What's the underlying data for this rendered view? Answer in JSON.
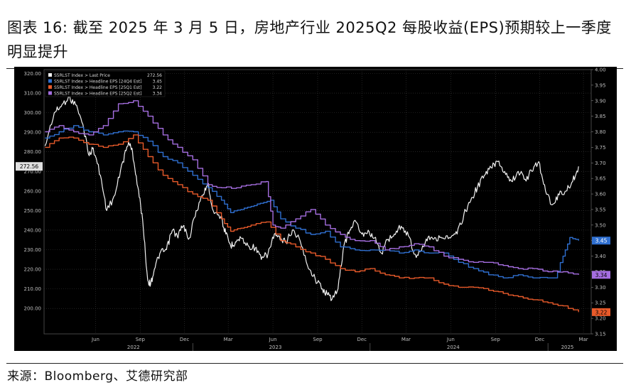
{
  "title": "图表 16: 截至 2025 年 3 月 5 日，房地产行业 2025Q2 每股收益(EPS)预期较上一季度明显提升",
  "source": "来源：Bloomberg、艾德研究部",
  "chart_data": {
    "type": "line",
    "legend_position": "top-left",
    "grid": true,
    "x_ticks": [
      {
        "label": "Jun",
        "date": "2022-06-15"
      },
      {
        "label": "Sep",
        "date": "2022-09-15"
      },
      {
        "label": "Dec",
        "date": "2022-12-15"
      },
      {
        "label": "Mar",
        "date": "2023-03-15"
      },
      {
        "label": "Jun",
        "date": "2023-06-15"
      },
      {
        "label": "Sep",
        "date": "2023-09-15"
      },
      {
        "label": "Dec",
        "date": "2023-12-15"
      },
      {
        "label": "Mar",
        "date": "2024-03-15"
      },
      {
        "label": "Jun",
        "date": "2024-06-15"
      },
      {
        "label": "Sep",
        "date": "2024-09-15"
      },
      {
        "label": "Dec",
        "date": "2024-12-15"
      },
      {
        "label": "Mar",
        "date": "2025-03-15"
      }
    ],
    "year_labels": [
      {
        "label": "2022",
        "date": "2022-09-01"
      },
      {
        "label": "2023",
        "date": "2023-06-20"
      },
      {
        "label": "2024",
        "date": "2024-06-20"
      },
      {
        "label": "2025",
        "date": "2025-02-10"
      }
    ],
    "xlim": [
      "2022-03-01",
      "2025-03-31"
    ],
    "y_left": {
      "ylim": [
        187,
        322
      ],
      "ticks": [
        "200.00",
        "210.00",
        "220.00",
        "230.00",
        "240.00",
        "250.00",
        "260.00",
        "270.00",
        "280.00",
        "290.00",
        "300.00",
        "310.00",
        "320.00"
      ]
    },
    "y_right": {
      "ylim": [
        3.15,
        4.0
      ],
      "ticks": [
        "3.15",
        "3.20",
        "3.25",
        "3.30",
        "3.35",
        "3.40",
        "3.45",
        "3.50",
        "3.55",
        "3.60",
        "3.65",
        "3.70",
        "3.75",
        "3.80",
        "3.85",
        "3.90",
        "3.95",
        "4.00"
      ]
    },
    "last_labels": {
      "price": "272.56",
      "q4": "3.45",
      "q1": "3.22",
      "q2": "3.34"
    },
    "series": [
      {
        "name": "S5RLST Index > Last Price",
        "legend_value": "272.56",
        "color": "#f2f2f2",
        "axis": "left",
        "points": [
          [
            "2022-03-03",
            283
          ],
          [
            "2022-03-22",
            300
          ],
          [
            "2022-04-05",
            303
          ],
          [
            "2022-04-20",
            308
          ],
          [
            "2022-05-05",
            304
          ],
          [
            "2022-05-20",
            294
          ],
          [
            "2022-06-02",
            278
          ],
          [
            "2022-06-10",
            282
          ],
          [
            "2022-06-25",
            268
          ],
          [
            "2022-07-08",
            250
          ],
          [
            "2022-07-25",
            258
          ],
          [
            "2022-08-10",
            275
          ],
          [
            "2022-08-22",
            285
          ],
          [
            "2022-08-30",
            280
          ],
          [
            "2022-09-10",
            262
          ],
          [
            "2022-09-20",
            245
          ],
          [
            "2022-09-30",
            215
          ],
          [
            "2022-10-06",
            212
          ],
          [
            "2022-10-14",
            220
          ],
          [
            "2022-10-25",
            228
          ],
          [
            "2022-11-08",
            230
          ],
          [
            "2022-11-20",
            240
          ],
          [
            "2022-11-30",
            237
          ],
          [
            "2022-12-12",
            242
          ],
          [
            "2022-12-25",
            236
          ],
          [
            "2023-01-08",
            250
          ],
          [
            "2023-01-22",
            258
          ],
          [
            "2023-02-01",
            264
          ],
          [
            "2023-02-12",
            250
          ],
          [
            "2023-02-28",
            247
          ],
          [
            "2023-03-10",
            238
          ],
          [
            "2023-03-20",
            232
          ],
          [
            "2023-03-30",
            234
          ],
          [
            "2023-04-10",
            236
          ],
          [
            "2023-04-25",
            232
          ],
          [
            "2023-05-10",
            231
          ],
          [
            "2023-05-22",
            225
          ],
          [
            "2023-06-05",
            228
          ],
          [
            "2023-06-18",
            238
          ],
          [
            "2023-06-30",
            235
          ],
          [
            "2023-07-12",
            234
          ],
          [
            "2023-07-25",
            240
          ],
          [
            "2023-08-08",
            236
          ],
          [
            "2023-08-25",
            222
          ],
          [
            "2023-09-10",
            215
          ],
          [
            "2023-09-25",
            210
          ],
          [
            "2023-10-06",
            207
          ],
          [
            "2023-10-15",
            205
          ],
          [
            "2023-10-27",
            210
          ],
          [
            "2023-11-08",
            232
          ],
          [
            "2023-11-20",
            240
          ],
          [
            "2023-12-01",
            245
          ],
          [
            "2023-12-15",
            238
          ],
          [
            "2023-12-28",
            240
          ],
          [
            "2024-01-10",
            236
          ],
          [
            "2024-01-25",
            228
          ],
          [
            "2024-02-05",
            235
          ],
          [
            "2024-02-20",
            238
          ],
          [
            "2024-03-05",
            242
          ],
          [
            "2024-03-20",
            237
          ],
          [
            "2024-04-05",
            226
          ],
          [
            "2024-04-18",
            232
          ],
          [
            "2024-05-01",
            237
          ],
          [
            "2024-05-15",
            236
          ],
          [
            "2024-05-30",
            236
          ],
          [
            "2024-06-14",
            236
          ],
          [
            "2024-06-28",
            238
          ],
          [
            "2024-07-12",
            248
          ],
          [
            "2024-07-26",
            255
          ],
          [
            "2024-08-09",
            262
          ],
          [
            "2024-08-23",
            268
          ],
          [
            "2024-09-06",
            272
          ],
          [
            "2024-09-20",
            275
          ],
          [
            "2024-10-04",
            270
          ],
          [
            "2024-10-18",
            265
          ],
          [
            "2024-11-01",
            270
          ],
          [
            "2024-11-15",
            266
          ],
          [
            "2024-11-29",
            270
          ],
          [
            "2024-12-13",
            275
          ],
          [
            "2024-12-27",
            260
          ],
          [
            "2025-01-10",
            253
          ],
          [
            "2025-01-24",
            258
          ],
          [
            "2025-02-07",
            260
          ],
          [
            "2025-02-21",
            265
          ],
          [
            "2025-03-05",
            272.56
          ]
        ]
      },
      {
        "name": "S5RLST Index > Headline EPS [24Q4 Est]",
        "legend_value": "3.45",
        "color": "#2f6fd0",
        "axis": "right",
        "points": [
          [
            "2022-03-03",
            3.78
          ],
          [
            "2022-04-01",
            3.8
          ],
          [
            "2022-05-01",
            3.82
          ],
          [
            "2022-06-01",
            3.8
          ],
          [
            "2022-07-01",
            3.79
          ],
          [
            "2022-08-01",
            3.8
          ],
          [
            "2022-09-01",
            3.8
          ],
          [
            "2022-10-01",
            3.77
          ],
          [
            "2022-11-01",
            3.72
          ],
          [
            "2022-12-01",
            3.7
          ],
          [
            "2023-01-01",
            3.66
          ],
          [
            "2023-02-01",
            3.62
          ],
          [
            "2023-03-01",
            3.58
          ],
          [
            "2023-03-20",
            3.54
          ],
          [
            "2023-04-10",
            3.55
          ],
          [
            "2023-05-01",
            3.56
          ],
          [
            "2023-05-20",
            3.57
          ],
          [
            "2023-06-10",
            3.58
          ],
          [
            "2023-07-01",
            3.52
          ],
          [
            "2023-08-01",
            3.49
          ],
          [
            "2023-09-01",
            3.47
          ],
          [
            "2023-10-01",
            3.48
          ],
          [
            "2023-11-01",
            3.43
          ],
          [
            "2023-12-01",
            3.42
          ],
          [
            "2024-01-01",
            3.42
          ],
          [
            "2024-02-01",
            3.42
          ],
          [
            "2024-03-01",
            3.41
          ],
          [
            "2024-04-01",
            3.42
          ],
          [
            "2024-05-01",
            3.41
          ],
          [
            "2024-06-01",
            3.41
          ],
          [
            "2024-07-01",
            3.38
          ],
          [
            "2024-08-01",
            3.36
          ],
          [
            "2024-09-01",
            3.34
          ],
          [
            "2024-10-01",
            3.33
          ],
          [
            "2024-11-01",
            3.34
          ],
          [
            "2024-12-01",
            3.33
          ],
          [
            "2025-01-15",
            3.33
          ],
          [
            "2025-02-01",
            3.4
          ],
          [
            "2025-02-15",
            3.46
          ],
          [
            "2025-03-05",
            3.45
          ]
        ]
      },
      {
        "name": "S5RLST Index > Headline EPS [25Q1 Est]",
        "legend_value": "3.22",
        "color": "#e85a2a",
        "axis": "right",
        "points": [
          [
            "2022-03-03",
            3.75
          ],
          [
            "2022-04-01",
            3.78
          ],
          [
            "2022-05-01",
            3.78
          ],
          [
            "2022-06-01",
            3.76
          ],
          [
            "2022-07-01",
            3.75
          ],
          [
            "2022-08-01",
            3.76
          ],
          [
            "2022-09-01",
            3.79
          ],
          [
            "2022-10-01",
            3.72
          ],
          [
            "2022-11-01",
            3.66
          ],
          [
            "2022-12-01",
            3.63
          ],
          [
            "2023-01-01",
            3.6
          ],
          [
            "2023-02-01",
            3.58
          ],
          [
            "2023-03-01",
            3.52
          ],
          [
            "2023-03-20",
            3.48
          ],
          [
            "2023-04-10",
            3.49
          ],
          [
            "2023-05-01",
            3.5
          ],
          [
            "2023-06-01",
            3.51
          ],
          [
            "2023-07-01",
            3.45
          ],
          [
            "2023-08-01",
            3.43
          ],
          [
            "2023-09-01",
            3.41
          ],
          [
            "2023-10-01",
            3.39
          ],
          [
            "2023-11-01",
            3.36
          ],
          [
            "2023-12-01",
            3.35
          ],
          [
            "2024-01-01",
            3.36
          ],
          [
            "2024-02-01",
            3.34
          ],
          [
            "2024-03-01",
            3.33
          ],
          [
            "2024-04-01",
            3.33
          ],
          [
            "2024-05-01",
            3.33
          ],
          [
            "2024-06-01",
            3.31
          ],
          [
            "2024-07-01",
            3.3
          ],
          [
            "2024-08-01",
            3.3
          ],
          [
            "2024-09-01",
            3.29
          ],
          [
            "2024-10-01",
            3.28
          ],
          [
            "2024-11-01",
            3.27
          ],
          [
            "2024-12-01",
            3.26
          ],
          [
            "2025-01-01",
            3.25
          ],
          [
            "2025-02-01",
            3.24
          ],
          [
            "2025-03-05",
            3.22
          ]
        ]
      },
      {
        "name": "S5RLST Index > Headline EPS [25Q2 Est]",
        "legend_value": "3.34",
        "color": "#a56ee0",
        "axis": "right",
        "points": [
          [
            "2022-03-03",
            3.8
          ],
          [
            "2022-04-01",
            3.82
          ],
          [
            "2022-05-01",
            3.8
          ],
          [
            "2022-06-01",
            3.79
          ],
          [
            "2022-07-01",
            3.82
          ],
          [
            "2022-08-01",
            3.89
          ],
          [
            "2022-09-01",
            3.9
          ],
          [
            "2022-10-01",
            3.85
          ],
          [
            "2022-11-01",
            3.79
          ],
          [
            "2022-12-01",
            3.75
          ],
          [
            "2023-01-01",
            3.71
          ],
          [
            "2023-02-01",
            3.63
          ],
          [
            "2023-03-01",
            3.62
          ],
          [
            "2023-04-01",
            3.62
          ],
          [
            "2023-05-01",
            3.63
          ],
          [
            "2023-06-01",
            3.64
          ],
          [
            "2023-06-15",
            3.5
          ],
          [
            "2023-07-01",
            3.49
          ],
          [
            "2023-08-01",
            3.52
          ],
          [
            "2023-09-01",
            3.55
          ],
          [
            "2023-10-01",
            3.5
          ],
          [
            "2023-11-01",
            3.47
          ],
          [
            "2023-12-01",
            3.45
          ],
          [
            "2024-01-01",
            3.45
          ],
          [
            "2024-02-01",
            3.42
          ],
          [
            "2024-03-01",
            3.43
          ],
          [
            "2024-04-01",
            3.44
          ],
          [
            "2024-05-01",
            3.43
          ],
          [
            "2024-06-01",
            3.4
          ],
          [
            "2024-07-01",
            3.39
          ],
          [
            "2024-08-01",
            3.38
          ],
          [
            "2024-09-01",
            3.38
          ],
          [
            "2024-10-01",
            3.37
          ],
          [
            "2024-11-01",
            3.36
          ],
          [
            "2024-12-01",
            3.36
          ],
          [
            "2025-01-01",
            3.35
          ],
          [
            "2025-02-01",
            3.35
          ],
          [
            "2025-03-05",
            3.34
          ]
        ]
      }
    ]
  }
}
